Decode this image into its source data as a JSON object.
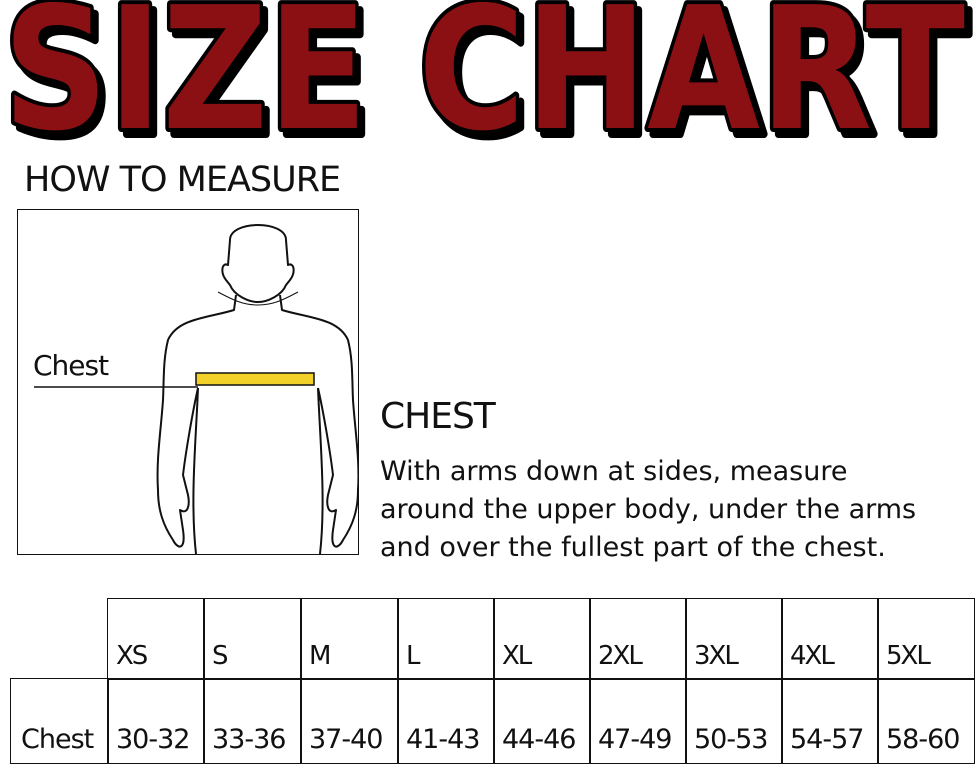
{
  "title": "SIZE CHART",
  "colors": {
    "title_fill": "#8B1014",
    "title_outline": "#000000",
    "tape": "#F2D12A"
  },
  "how_to_measure": "HOW TO MEASURE",
  "figure": {
    "chest_label": "Chest"
  },
  "chest": {
    "heading": "CHEST",
    "description_lines": [
      "With arms down at sides, measure",
      "around the upper body, under the arms",
      "and over the fullest part of the chest."
    ]
  },
  "table": {
    "sizes": [
      "XS",
      "S",
      "M",
      "L",
      "XL",
      "2XL",
      "3XL",
      "4XL",
      "5XL"
    ],
    "row_label": "Chest",
    "values": [
      "30-32",
      "33-36",
      "37-40",
      "41-43",
      "44-46",
      "47-49",
      "50-53",
      "54-57",
      "58-60"
    ]
  }
}
